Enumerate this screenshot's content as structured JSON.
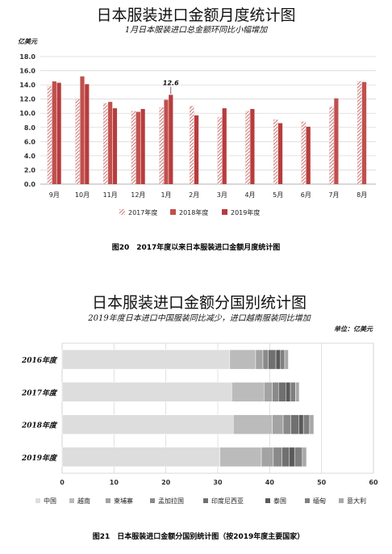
{
  "figures": [
    {
      "title": "日本服装进口金额月度统计图",
      "subtitle": "1月日本服装进口总金额环同比小幅增加",
      "unit": "亿美元",
      "caption": "图20　2017年度以来日本服装进口金额月度统计图"
    },
    {
      "title": "日本服装进口金额分国别统计图",
      "subtitle": "2019年度日本进口中国服装同比减少，进口越南服装同比增加",
      "unit": "单位：亿美元",
      "caption": "图21　日本服装进口金额分国别统计图（按2019年度主要国家）"
    }
  ],
  "colors": {
    "series_2017": "#d99a9a",
    "series_2018": "#c0504d",
    "series_2019": "#b83c3c",
    "grid": "#d9d9d9",
    "stack": [
      "#dddddd",
      "#bbbbbb",
      "#a3a3a3",
      "#8a8a8a",
      "#707070",
      "#5a5a5a",
      "#7f7f7f",
      "#a8a8a8"
    ]
  },
  "chart_data": [
    {
      "type": "bar",
      "title": "日本服装进口金额月度统计图",
      "subtitle": "1月日本服装进口总金额环同比小幅增加",
      "ylabel": "亿美元",
      "ylim": [
        0,
        18
      ],
      "yticks": [
        "0.0",
        "2.0",
        "4.0",
        "6.0",
        "8.0",
        "10.0",
        "12.0",
        "14.0",
        "16.0",
        "18.0"
      ],
      "grid": true,
      "legend": "bottom",
      "categories": [
        "9月",
        "10月",
        "11月",
        "12月",
        "1月",
        "2月",
        "3月",
        "4月",
        "5月",
        "6月",
        "7月",
        "8月"
      ],
      "series": [
        {
          "name": "2017年度",
          "values": [
            13.8,
            12.0,
            11.4,
            10.3,
            10.8,
            11.0,
            9.4,
            10.3,
            9.1,
            8.8,
            10.9,
            14.5
          ]
        },
        {
          "name": "2018年度",
          "values": [
            14.5,
            15.2,
            11.6,
            10.2,
            11.9,
            null,
            null,
            null,
            null,
            null,
            12.1,
            14.4
          ]
        },
        {
          "name": "2019年度",
          "values": [
            14.3,
            14.1,
            10.7,
            10.6,
            12.6,
            9.7,
            10.7,
            10.6,
            8.6,
            8.1,
            null,
            null
          ]
        }
      ],
      "annotations": [
        {
          "category": "1月",
          "series": "2019年度",
          "text": "12.6"
        }
      ]
    },
    {
      "type": "bar",
      "orientation": "horizontal",
      "stacked": true,
      "title": "日本服装进口金额分国别统计图",
      "subtitle": "2019年度日本进口中国服装同比减少，进口越南服装同比增加",
      "unit": "单位：亿美元",
      "xlim": [
        0,
        60
      ],
      "xticks": [
        "0",
        "10",
        "20",
        "30",
        "40",
        "50",
        "60"
      ],
      "grid": true,
      "legend": "bottom",
      "categories": [
        "2016年度",
        "2017年度",
        "2018年度",
        "2019年度"
      ],
      "series": [
        {
          "name": "中国",
          "values": [
            32.3,
            32.7,
            33.0,
            30.4
          ]
        },
        {
          "name": "越南",
          "values": [
            5.0,
            6.2,
            7.5,
            8.0
          ]
        },
        {
          "name": "柬埔寨",
          "values": [
            1.4,
            1.6,
            2.1,
            2.3
          ]
        },
        {
          "name": "孟加拉国",
          "values": [
            1.0,
            1.2,
            1.5,
            1.7
          ]
        },
        {
          "name": "印度尼西亚",
          "values": [
            1.5,
            1.4,
            1.5,
            1.4
          ]
        },
        {
          "name": "泰国",
          "values": [
            0.9,
            0.9,
            0.9,
            1.0
          ]
        },
        {
          "name": "缅甸",
          "values": [
            0.8,
            1.0,
            1.2,
            1.5
          ]
        },
        {
          "name": "意大利",
          "values": [
            0.7,
            0.7,
            0.8,
            0.8
          ]
        }
      ]
    }
  ]
}
